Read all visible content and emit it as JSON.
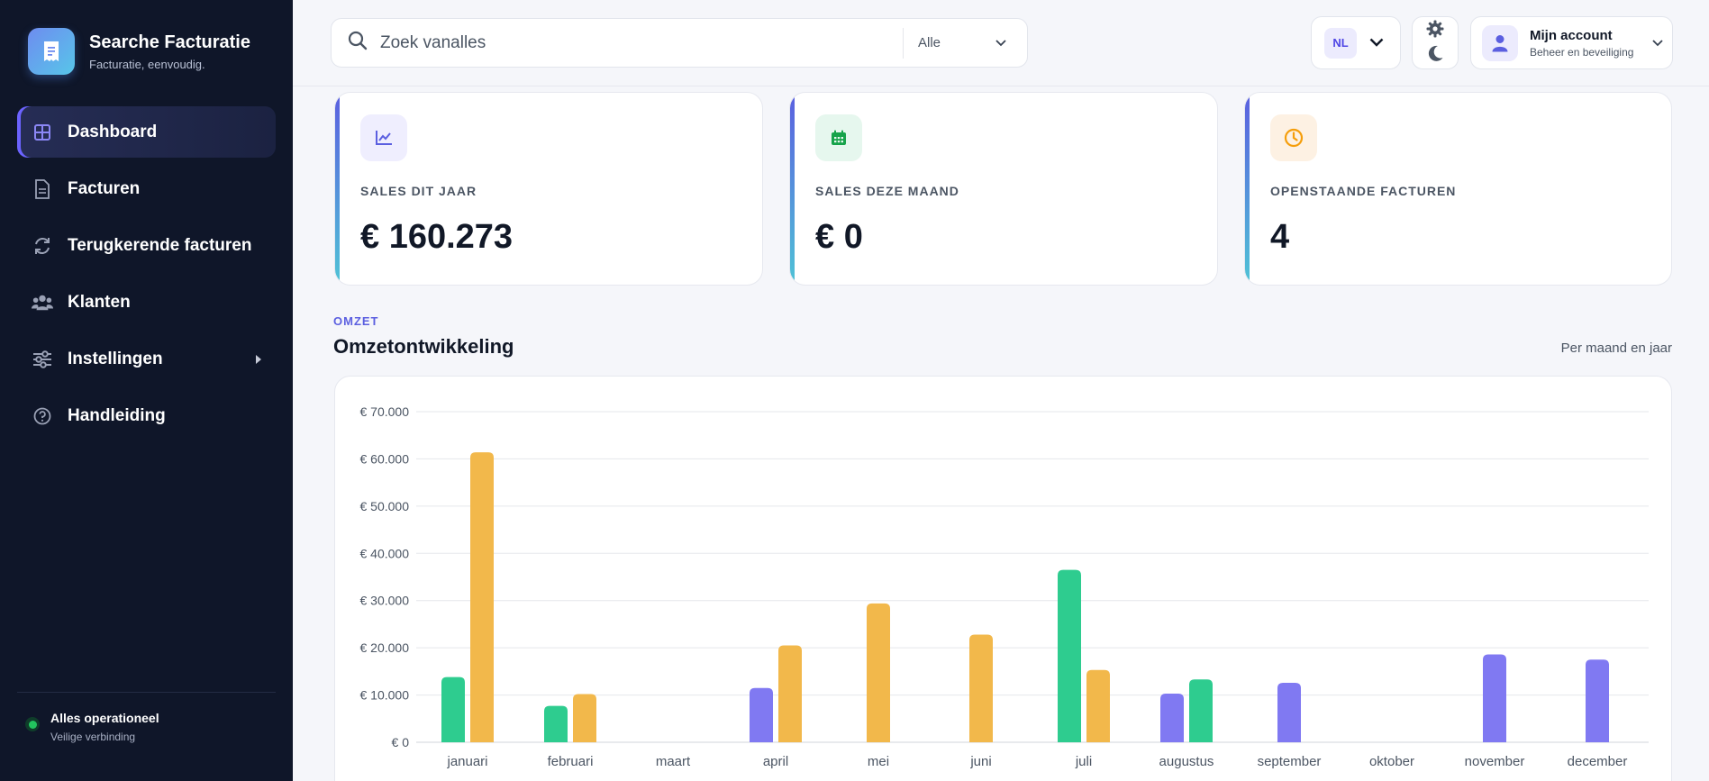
{
  "sidebar": {
    "brand": {
      "title": "Searche Facturatie",
      "subtitle": "Facturatie, eenvoudig."
    },
    "items": [
      {
        "label": "Dashboard",
        "name": "dashboard",
        "active": true
      },
      {
        "label": "Facturen",
        "name": "facturen"
      },
      {
        "label": "Terugkerende facturen",
        "name": "terugkerende-facturen"
      },
      {
        "label": "Klanten",
        "name": "klanten"
      },
      {
        "label": "Instellingen",
        "name": "instellingen",
        "expandable": true
      },
      {
        "label": "Handleiding",
        "name": "handleiding"
      }
    ],
    "status": {
      "title": "Alles operationeel",
      "subtitle": "Veilige verbinding",
      "color": "#22c55e"
    }
  },
  "header": {
    "search": {
      "placeholder": "Zoek vanalles",
      "value": "",
      "scope": "Alle"
    },
    "language": "NL",
    "account": {
      "name": "Mijn account",
      "subtitle": "Beheer en beveiliging"
    }
  },
  "stats": [
    {
      "label": "SALES DIT JAAR",
      "value": "€ 160.273",
      "icon": "chart-line-icon",
      "icon_color": "#5b5fe0",
      "icon_bg": "#efeefe"
    },
    {
      "label": "SALES DEZE MAAND",
      "value": "€ 0",
      "icon": "calendar-icon",
      "icon_color": "#16a34a",
      "icon_bg": "#e6f7ee"
    },
    {
      "label": "OPENSTAANDE FACTUREN",
      "value": "4",
      "icon": "clock-icon",
      "icon_color": "#f59e0b",
      "icon_bg": "#fdf1e3"
    }
  ],
  "revenue": {
    "eyebrow": "OMZET",
    "title": "Omzetontwikkeling",
    "subtitle": "Per maand en jaar"
  },
  "chart_data": {
    "type": "bar",
    "categories": [
      "januari",
      "februari",
      "maart",
      "april",
      "mei",
      "juni",
      "juli",
      "augustus",
      "september",
      "oktober",
      "november",
      "december"
    ],
    "yticks": [
      "€ 0",
      "€ 10.000",
      "€ 20.000",
      "€ 30.000",
      "€ 40.000",
      "€ 50.000",
      "€ 60.000",
      "€ 70.000"
    ],
    "ylim": [
      0,
      70000
    ],
    "grid": true,
    "legend": "none",
    "series": [
      {
        "color": "#8079f2",
        "values": [
          null,
          null,
          null,
          11500,
          null,
          null,
          null,
          10300,
          12600,
          null,
          18600,
          17500
        ]
      },
      {
        "color": "#2ecc8f",
        "values": [
          13800,
          7700,
          null,
          null,
          null,
          null,
          36500,
          13300,
          null,
          null,
          null,
          null
        ]
      },
      {
        "color": "#f2b84b",
        "values": [
          61400,
          10200,
          null,
          20500,
          29400,
          22800,
          15300,
          null,
          null,
          null,
          null,
          null
        ]
      }
    ]
  }
}
